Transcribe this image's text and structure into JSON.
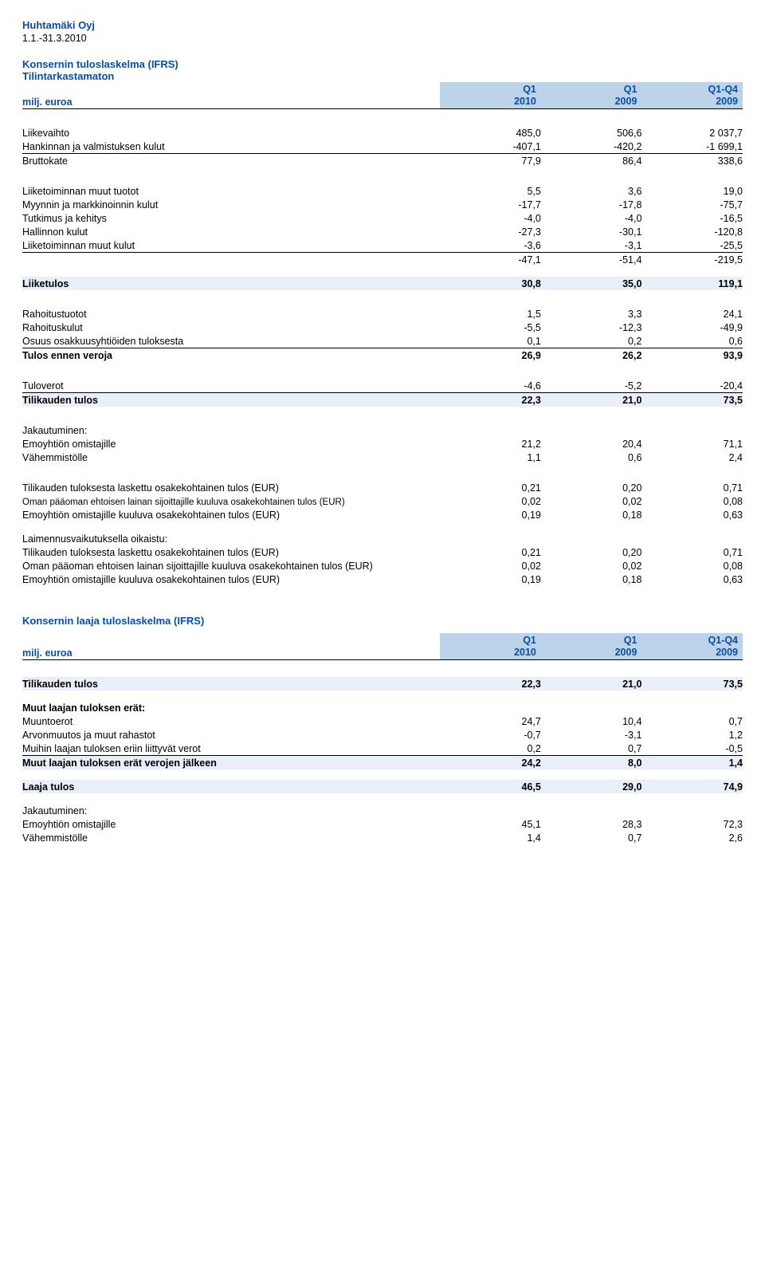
{
  "company": "Huhtamäki Oyj",
  "period": "1.1.-31.3.2010",
  "title1": "Konsernin tuloslaskelma (IFRS)",
  "title1b": "Tilintarkastamaton",
  "colLabel": "milj. euroa",
  "cols": {
    "c1a": "Q1",
    "c1b": "2010",
    "c2a": "Q1",
    "c2b": "2009",
    "c3a": "Q1-Q4",
    "c3b": "2009"
  },
  "rows1": [
    {
      "l": "Liikevaihto",
      "v": [
        "485,0",
        "506,6",
        "2 037,7"
      ]
    },
    {
      "l": "Hankinnan ja valmistuksen kulut",
      "v": [
        "-407,1",
        "-420,2",
        "-1 699,1"
      ],
      "under": true
    },
    {
      "l": "Bruttokate",
      "v": [
        "77,9",
        "86,4",
        "338,6"
      ]
    }
  ],
  "rows2": [
    {
      "l": "Liiketoiminnan muut tuotot",
      "v": [
        "5,5",
        "3,6",
        "19,0"
      ]
    },
    {
      "l": "Myynnin ja markkinoinnin kulut",
      "v": [
        "-17,7",
        "-17,8",
        "-75,7"
      ]
    },
    {
      "l": "Tutkimus ja kehitys",
      "v": [
        "-4,0",
        "-4,0",
        "-16,5"
      ]
    },
    {
      "l": "Hallinnon kulut",
      "v": [
        "-27,3",
        "-30,1",
        "-120,8"
      ]
    },
    {
      "l": "Liiketoiminnan muut kulut",
      "v": [
        "-3,6",
        "-3,1",
        "-25,5"
      ],
      "under": true
    },
    {
      "l": "",
      "v": [
        "-47,1",
        "-51,4",
        "-219,5"
      ]
    }
  ],
  "band1": {
    "l": "Liiketulos",
    "v": [
      "30,8",
      "35,0",
      "119,1"
    ]
  },
  "rows3": [
    {
      "l": "Rahoitustuotot",
      "v": [
        "1,5",
        "3,3",
        "24,1"
      ]
    },
    {
      "l": "Rahoituskulut",
      "v": [
        "-5,5",
        "-12,3",
        "-49,9"
      ]
    },
    {
      "l": "Osuus osakkuusyhtiöiden tuloksesta",
      "v": [
        "0,1",
        "0,2",
        "0,6"
      ],
      "under": true
    },
    {
      "l": "Tulos ennen veroja",
      "v": [
        "26,9",
        "26,2",
        "93,9"
      ],
      "bold": true
    }
  ],
  "rows4": [
    {
      "l": "Tuloverot",
      "v": [
        "-4,6",
        "-5,2",
        "-20,4"
      ],
      "under": true
    }
  ],
  "band2": {
    "l": "Tilikauden tulos",
    "v": [
      "22,3",
      "21,0",
      "73,5"
    ]
  },
  "jakLabel": "Jakautuminen:",
  "rows5": [
    {
      "l": "Emoyhtiön omistajille",
      "v": [
        "21,2",
        "20,4",
        "71,1"
      ]
    },
    {
      "l": "Vähemmistölle",
      "v": [
        "1,1",
        "0,6",
        "2,4"
      ]
    }
  ],
  "rows6": [
    {
      "l": "Tilikauden tuloksesta laskettu osakekohtainen tulos (EUR)",
      "v": [
        "0,21",
        "0,20",
        "0,71"
      ]
    },
    {
      "l": "Oman pääoman ehtoisen lainan sijoittajille kuuluva osakekohtainen tulos (EUR)",
      "v": [
        "0,02",
        "0,02",
        "0,08"
      ],
      "small": true
    },
    {
      "l": "Emoyhtiön omistajille kuuluva osakekohtainen tulos (EUR)",
      "v": [
        "0,19",
        "0,18",
        "0,63"
      ]
    }
  ],
  "laimLabel": "Laimennusvaikutuksella oikaistu:",
  "rows7": [
    {
      "l": "Tilikauden tuloksesta laskettu osakekohtainen tulos (EUR)",
      "v": [
        "0,21",
        "0,20",
        "0,71"
      ]
    },
    {
      "l": "Oman pääoman ehtoisen lainan sijoittajille kuuluva osakekohtainen tulos (EUR)",
      "v": [
        "0,02",
        "0,02",
        "0,08"
      ]
    },
    {
      "l": "Emoyhtiön omistajille kuuluva osakekohtainen tulos (EUR)",
      "v": [
        "0,19",
        "0,18",
        "0,63"
      ]
    }
  ],
  "title2": "Konsernin laaja tuloslaskelma (IFRS)",
  "band3": {
    "l": "Tilikauden tulos",
    "v": [
      "22,3",
      "21,0",
      "73,5"
    ]
  },
  "muutLabel": "Muut laajan tuloksen erät:",
  "rows8": [
    {
      "l": "Muuntoerot",
      "v": [
        "24,7",
        "10,4",
        "0,7"
      ]
    },
    {
      "l": "Arvonmuutos ja muut rahastot",
      "v": [
        "-0,7",
        "-3,1",
        "1,2"
      ]
    },
    {
      "l": "Muihin laajan tuloksen eriin liittyvät verot",
      "v": [
        "0,2",
        "0,7",
        "-0,5"
      ],
      "under": true
    }
  ],
  "band4": {
    "l": "Muut laajan tuloksen erät verojen jälkeen",
    "v": [
      "24,2",
      "8,0",
      "1,4"
    ]
  },
  "band5": {
    "l": "Laaja tulos",
    "v": [
      "46,5",
      "29,0",
      "74,9"
    ]
  },
  "rows9": [
    {
      "l": "Emoyhtiön omistajille",
      "v": [
        "45,1",
        "28,3",
        "72,3"
      ]
    },
    {
      "l": "Vähemmistölle",
      "v": [
        "1,4",
        "0,7",
        "2,6"
      ]
    }
  ]
}
